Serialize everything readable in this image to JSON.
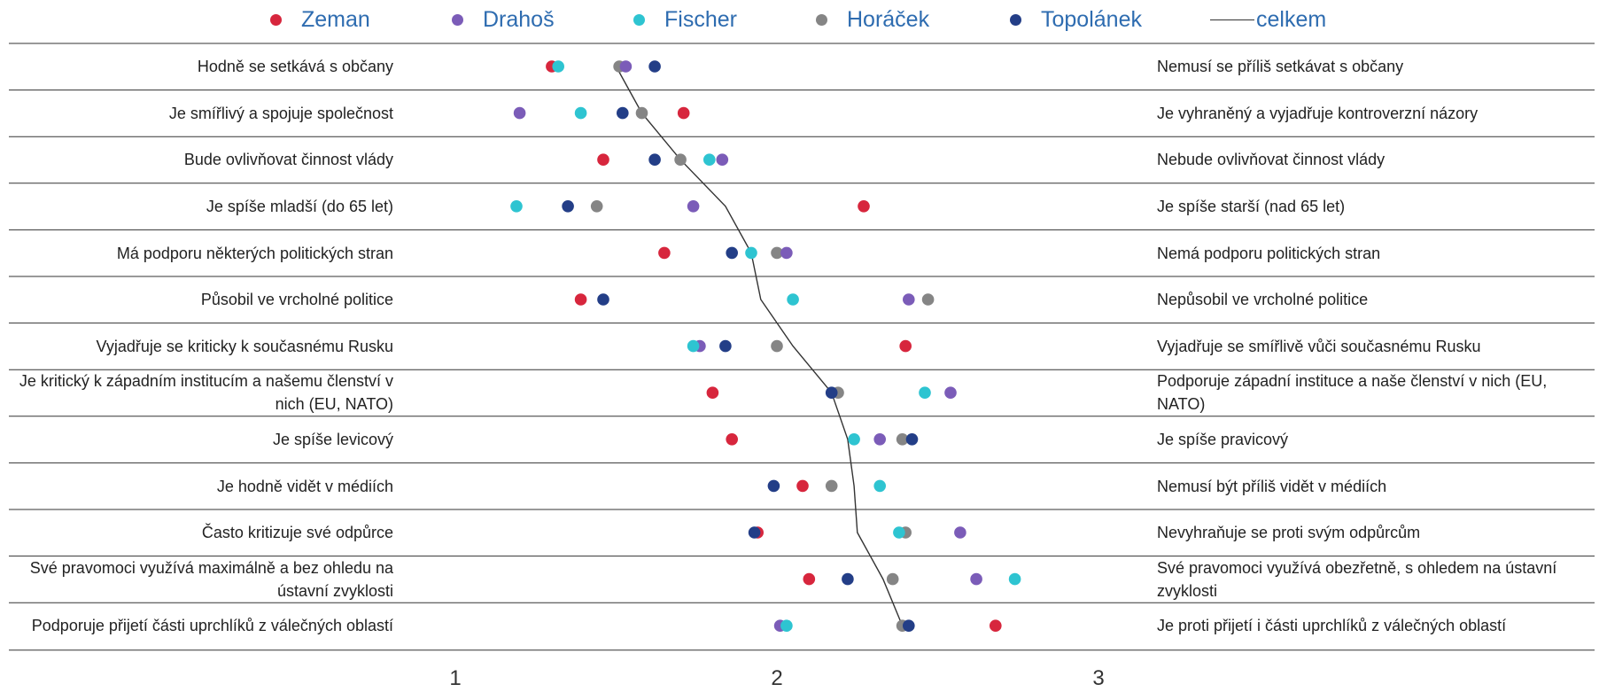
{
  "chart_data": {
    "type": "scatter",
    "title": "",
    "xlabel": "",
    "ylabel": "",
    "xlim": [
      1,
      3
    ],
    "xticks": [
      "1",
      "2",
      "3"
    ],
    "grid": "horizontal row separators",
    "legend_position": "top",
    "colors": {
      "Zeman": "#D7263D",
      "Drahoš": "#7B5CB8",
      "Fischer": "#2EC4D1",
      "Horáček": "#858585",
      "Topolánek": "#233E87",
      "celkem": "#333333"
    },
    "series_names": [
      "Zeman",
      "Drahoš",
      "Fischer",
      "Horáček",
      "Topolánek",
      "celkem"
    ],
    "rows": [
      {
        "left": "Hodně se setkává s občany",
        "right": "Nemusí se příliš setkávat s občany",
        "Zeman": 1.3,
        "Drahoš": 1.53,
        "Fischer": 1.32,
        "Horáček": 1.51,
        "Topolánek": 1.62,
        "celkem": 1.5
      },
      {
        "left": "Je smířlivý a spojuje společnost",
        "right": "Je vyhraněný a vyjadřuje kontroverzní názory",
        "Zeman": 1.71,
        "Drahoš": 1.2,
        "Fischer": 1.39,
        "Horáček": 1.58,
        "Topolánek": 1.52,
        "celkem": 1.58
      },
      {
        "left": "Bude ovlivňovat činnost vlády",
        "right": "Nebude ovlivňovat činnost vlády",
        "Zeman": 1.46,
        "Drahoš": 1.83,
        "Fischer": 1.79,
        "Horáček": 1.7,
        "Topolánek": 1.62,
        "celkem": 1.7
      },
      {
        "left": "Je spíše mladší (do 65 let)",
        "right": "Je spíše starší (nad 65 let)",
        "Zeman": 2.27,
        "Drahoš": 1.74,
        "Fischer": 1.19,
        "Horáček": 1.44,
        "Topolánek": 1.35,
        "celkem": 1.84
      },
      {
        "left": "Má podporu některých politických stran",
        "right": "Nemá podporu politických stran",
        "Zeman": 1.65,
        "Drahoš": 2.03,
        "Fischer": 1.92,
        "Horáček": 2.0,
        "Topolánek": 1.86,
        "celkem": 1.92
      },
      {
        "left": "Působil ve vrcholné politice",
        "right": "Nepůsobil ve vrcholné politice",
        "Zeman": 1.39,
        "Drahoš": 2.41,
        "Fischer": 2.05,
        "Horáček": 2.47,
        "Topolánek": 1.46,
        "celkem": 1.95
      },
      {
        "left": "Vyjadřuje se kriticky k současnému Rusku",
        "right": "Vyjadřuje se smířlivě vůči současnému Rusku",
        "Zeman": 2.4,
        "Drahoš": 1.76,
        "Fischer": 1.74,
        "Horáček": 2.0,
        "Topolánek": 1.84,
        "celkem": 2.05
      },
      {
        "left": "Je kritický k západním institucím a našemu členství v nich (EU, NATO)",
        "right": "Podporuje západní instituce a naše členství v nich (EU, NATO)",
        "Zeman": 1.8,
        "Drahoš": 2.54,
        "Fischer": 2.46,
        "Horáček": 2.19,
        "Topolánek": 2.17,
        "celkem": 2.17
      },
      {
        "left": "Je spíše levicový",
        "right": "Je spíše pravicový",
        "Zeman": 1.86,
        "Drahoš": 2.32,
        "Fischer": 2.24,
        "Horáček": 2.39,
        "Topolánek": 2.42,
        "celkem": 2.22
      },
      {
        "left": "Je hodně vidět v médiích",
        "right": "Nemusí být příliš vidět v médiích",
        "Zeman": 2.08,
        "Drahoš": null,
        "Fischer": 2.32,
        "Horáček": 2.17,
        "Topolánek": 1.99,
        "celkem": 2.24
      },
      {
        "left": "Často kritizuje své odpůrce",
        "right": "Nevyhraňuje se proti svým odpůrcům",
        "Zeman": 1.94,
        "Drahoš": 2.57,
        "Fischer": 2.38,
        "Horáček": 2.4,
        "Topolánek": 1.93,
        "celkem": 2.25
      },
      {
        "left": "Své pravomoci využívá maximálně a bez ohledu na ústavní zvyklosti",
        "right": "Své pravomoci využívá obezřetně, s ohledem na ústavní zvyklosti",
        "Zeman": 2.1,
        "Drahoš": 2.62,
        "Fischer": 2.74,
        "Horáček": 2.36,
        "Topolánek": 2.22,
        "celkem": 2.33
      },
      {
        "left": "Podporuje přijetí části uprchlíků z válečných oblastí",
        "right": "Je proti přijetí i části uprchlíků z válečných oblastí",
        "Zeman": 2.68,
        "Drahoš": 2.01,
        "Fischer": 2.03,
        "Horáček": 2.39,
        "Topolánek": 2.41,
        "celkem": 2.39
      }
    ]
  }
}
